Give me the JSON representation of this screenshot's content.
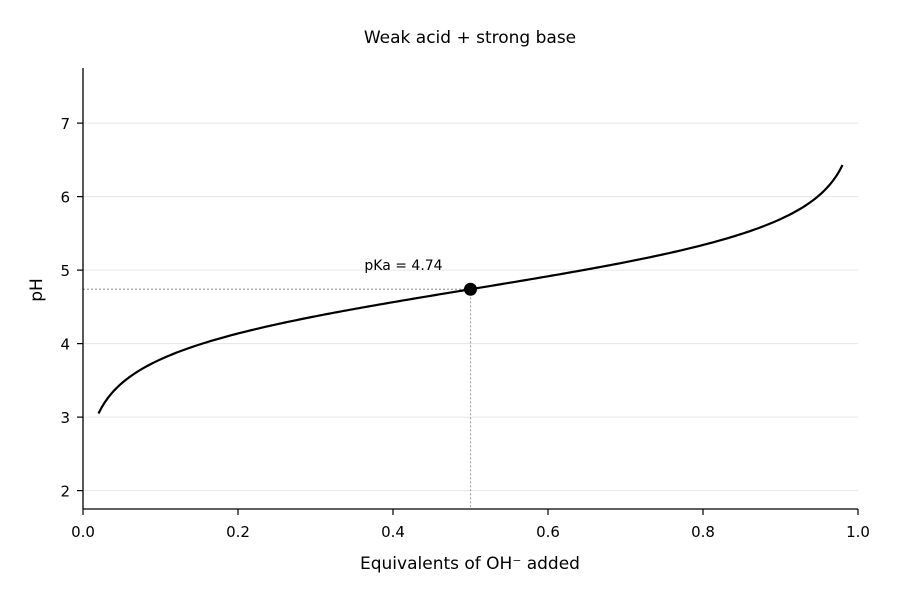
{
  "chart_data": {
    "type": "line",
    "title": "Weak acid + strong base",
    "xlabel": "Equivalents of OH⁻ added",
    "ylabel": "pH",
    "xlim": [
      0.0,
      1.0
    ],
    "ylim": [
      1.75,
      7.75
    ],
    "xticks": [
      0.0,
      0.2,
      0.4,
      0.6,
      0.8,
      1.0
    ],
    "xtick_labels": [
      "0.0",
      "0.2",
      "0.4",
      "0.6",
      "0.8",
      "1.0"
    ],
    "yticks": [
      2,
      3,
      4,
      5,
      6,
      7
    ],
    "ytick_labels": [
      "2",
      "3",
      "4",
      "5",
      "6",
      "7"
    ],
    "grid": "horizontal",
    "pKa": 4.74,
    "x_range": [
      0.02,
      0.98
    ],
    "series": [
      {
        "x": [
          0.02,
          0.05,
          0.1,
          0.15,
          0.2,
          0.25,
          0.3,
          0.35,
          0.4,
          0.45,
          0.5,
          0.55,
          0.6,
          0.65,
          0.7,
          0.75,
          0.8,
          0.85,
          0.9,
          0.95,
          0.98
        ],
        "y": [
          3.05,
          3.46,
          3.79,
          3.99,
          4.14,
          4.26,
          4.37,
          4.47,
          4.56,
          4.65,
          4.74,
          4.83,
          4.92,
          5.01,
          5.11,
          5.22,
          5.34,
          5.49,
          5.69,
          6.02,
          6.43
        ],
        "color": "#000000"
      }
    ],
    "annotations": [
      {
        "text": "pKa = 4.74",
        "x": 0.5,
        "y": 4.74,
        "marker": "dot",
        "guides": "dotted-to-axes"
      }
    ],
    "colors": {
      "line": "#000000",
      "grid": "#e6e6e6",
      "guide": "#a0a0a0"
    }
  }
}
